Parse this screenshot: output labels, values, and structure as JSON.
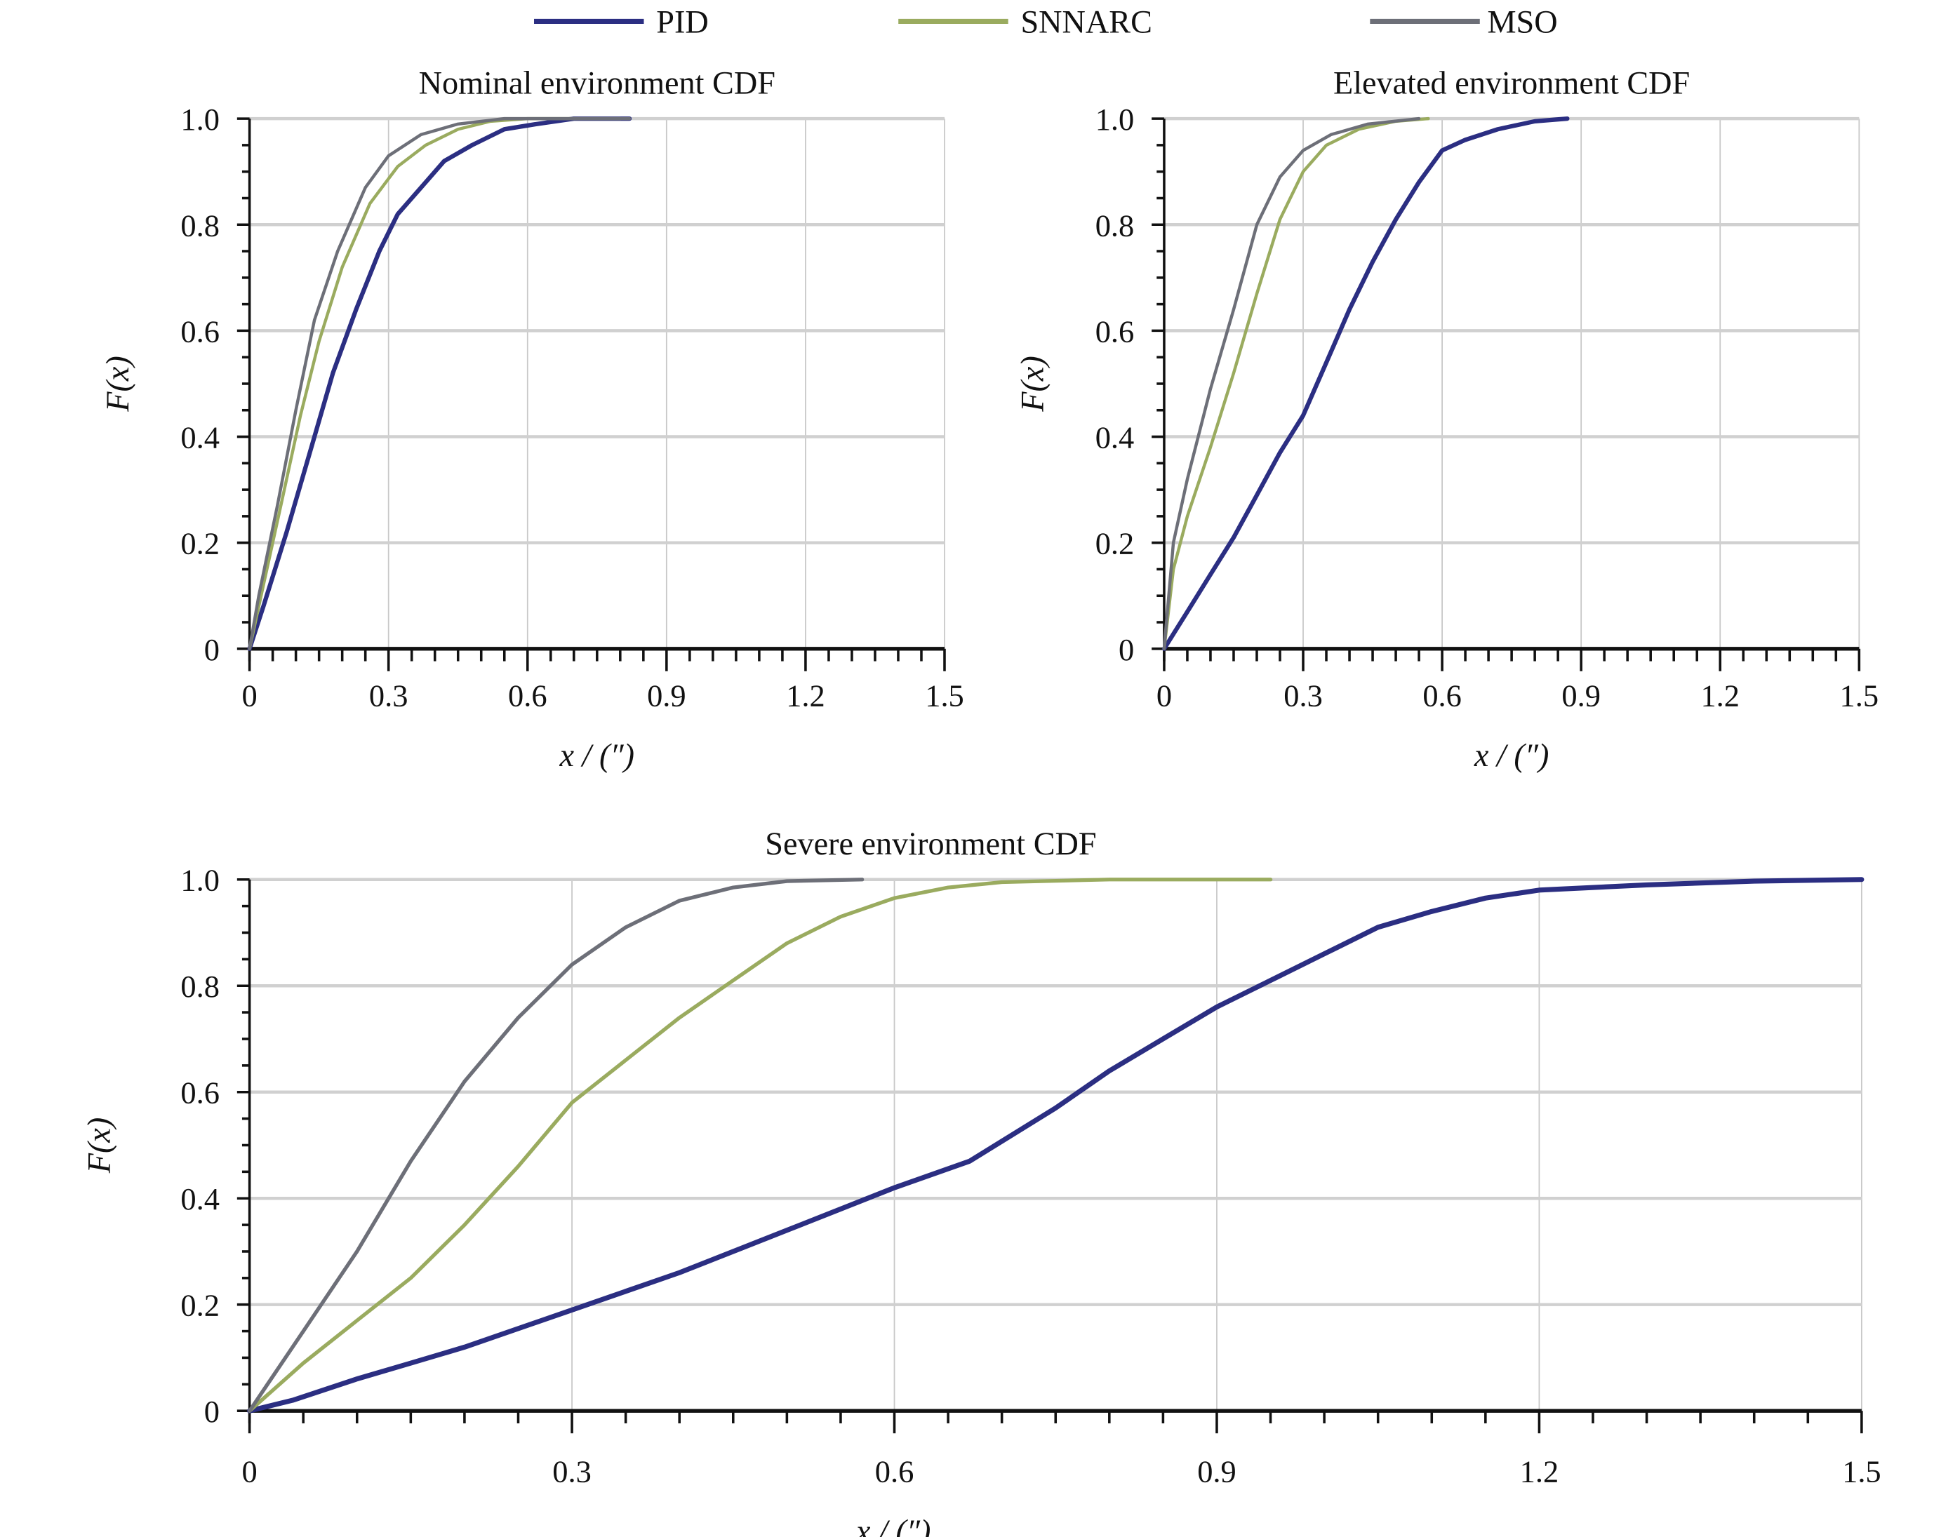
{
  "legend": [
    {
      "name": "PID",
      "color": "#2b2e82"
    },
    {
      "name": "SNNARC",
      "color": "#9aab5f"
    },
    {
      "name": "MSO",
      "color": "#6d6f78"
    }
  ],
  "chart_data": [
    {
      "type": "line",
      "title": "Nominal environment CDF",
      "xlabel": "x / (″)",
      "ylabel": "F(x)",
      "xlim": [
        0,
        1.5
      ],
      "ylim": [
        0,
        1.0
      ],
      "xticks": [
        "0",
        "0.3",
        "0.6",
        "0.9",
        "1.2",
        "1.5"
      ],
      "yticks": [
        "0",
        "0.2",
        "0.4",
        "0.6",
        "0.8",
        "1.0"
      ],
      "grid": true,
      "series": [
        {
          "name": "PID",
          "points": [
            [
              0,
              0
            ],
            [
              0.03,
              0.08
            ],
            [
              0.08,
              0.22
            ],
            [
              0.13,
              0.37
            ],
            [
              0.18,
              0.52
            ],
            [
              0.23,
              0.64
            ],
            [
              0.28,
              0.75
            ],
            [
              0.32,
              0.82
            ],
            [
              0.37,
              0.87
            ],
            [
              0.42,
              0.92
            ],
            [
              0.48,
              0.95
            ],
            [
              0.55,
              0.98
            ],
            [
              0.62,
              0.99
            ],
            [
              0.7,
              1.0
            ],
            [
              0.82,
              1.0
            ]
          ]
        },
        {
          "name": "SNNARC",
          "points": [
            [
              0,
              0
            ],
            [
              0.03,
              0.12
            ],
            [
              0.07,
              0.28
            ],
            [
              0.11,
              0.44
            ],
            [
              0.15,
              0.58
            ],
            [
              0.2,
              0.72
            ],
            [
              0.26,
              0.84
            ],
            [
              0.32,
              0.91
            ],
            [
              0.38,
              0.95
            ],
            [
              0.45,
              0.98
            ],
            [
              0.52,
              0.995
            ],
            [
              0.6,
              1.0
            ],
            [
              0.8,
              1.0
            ]
          ]
        },
        {
          "name": "MSO",
          "points": [
            [
              0,
              0
            ],
            [
              0.02,
              0.1
            ],
            [
              0.06,
              0.27
            ],
            [
              0.1,
              0.45
            ],
            [
              0.14,
              0.62
            ],
            [
              0.19,
              0.75
            ],
            [
              0.25,
              0.87
            ],
            [
              0.3,
              0.93
            ],
            [
              0.37,
              0.97
            ],
            [
              0.45,
              0.99
            ],
            [
              0.55,
              1.0
            ],
            [
              0.82,
              1.0
            ]
          ]
        }
      ]
    },
    {
      "type": "line",
      "title": "Elevated environment CDF",
      "xlabel": "x / (″)",
      "ylabel": "F(x)",
      "xlim": [
        0,
        1.5
      ],
      "ylim": [
        0,
        1.0
      ],
      "xticks": [
        "0",
        "0.3",
        "0.6",
        "0.9",
        "1.2",
        "1.5"
      ],
      "yticks": [
        "0",
        "0.2",
        "0.4",
        "0.6",
        "0.8",
        "1.0"
      ],
      "grid": true,
      "series": [
        {
          "name": "PID",
          "points": [
            [
              0,
              0
            ],
            [
              0.05,
              0.07
            ],
            [
              0.1,
              0.14
            ],
            [
              0.15,
              0.21
            ],
            [
              0.2,
              0.29
            ],
            [
              0.25,
              0.37
            ],
            [
              0.3,
              0.44
            ],
            [
              0.35,
              0.54
            ],
            [
              0.4,
              0.64
            ],
            [
              0.45,
              0.73
            ],
            [
              0.5,
              0.81
            ],
            [
              0.55,
              0.88
            ],
            [
              0.6,
              0.94
            ],
            [
              0.65,
              0.96
            ],
            [
              0.72,
              0.98
            ],
            [
              0.8,
              0.995
            ],
            [
              0.87,
              1.0
            ]
          ]
        },
        {
          "name": "SNNARC",
          "points": [
            [
              0,
              0
            ],
            [
              0.02,
              0.15
            ],
            [
              0.05,
              0.25
            ],
            [
              0.1,
              0.38
            ],
            [
              0.15,
              0.52
            ],
            [
              0.2,
              0.67
            ],
            [
              0.25,
              0.81
            ],
            [
              0.3,
              0.9
            ],
            [
              0.35,
              0.95
            ],
            [
              0.42,
              0.98
            ],
            [
              0.5,
              0.995
            ],
            [
              0.57,
              1.0
            ]
          ]
        },
        {
          "name": "MSO",
          "points": [
            [
              0,
              0
            ],
            [
              0.02,
              0.2
            ],
            [
              0.05,
              0.32
            ],
            [
              0.1,
              0.49
            ],
            [
              0.15,
              0.64
            ],
            [
              0.2,
              0.8
            ],
            [
              0.25,
              0.89
            ],
            [
              0.3,
              0.94
            ],
            [
              0.36,
              0.97
            ],
            [
              0.44,
              0.99
            ],
            [
              0.55,
              1.0
            ]
          ]
        }
      ]
    },
    {
      "type": "line",
      "title": "Severe environment CDF",
      "xlabel": "x / (″)",
      "ylabel": "F(x)",
      "xlim": [
        0,
        1.5
      ],
      "ylim": [
        0,
        1.0
      ],
      "xticks": [
        "0",
        "0.3",
        "0.6",
        "0.9",
        "1.2",
        "1.5"
      ],
      "yticks": [
        "0",
        "0.2",
        "0.4",
        "0.6",
        "0.8",
        "1.0"
      ],
      "grid": true,
      "series": [
        {
          "name": "PID",
          "points": [
            [
              0,
              0
            ],
            [
              0.04,
              0.02
            ],
            [
              0.1,
              0.06
            ],
            [
              0.15,
              0.09
            ],
            [
              0.2,
              0.12
            ],
            [
              0.3,
              0.19
            ],
            [
              0.4,
              0.26
            ],
            [
              0.5,
              0.34
            ],
            [
              0.6,
              0.42
            ],
            [
              0.67,
              0.47
            ],
            [
              0.75,
              0.57
            ],
            [
              0.8,
              0.64
            ],
            [
              0.85,
              0.7
            ],
            [
              0.9,
              0.76
            ],
            [
              0.95,
              0.81
            ],
            [
              1.0,
              0.86
            ],
            [
              1.05,
              0.91
            ],
            [
              1.1,
              0.94
            ],
            [
              1.15,
              0.965
            ],
            [
              1.2,
              0.98
            ],
            [
              1.3,
              0.99
            ],
            [
              1.4,
              0.997
            ],
            [
              1.5,
              1.0
            ]
          ]
        },
        {
          "name": "SNNARC",
          "points": [
            [
              0,
              0
            ],
            [
              0.05,
              0.09
            ],
            [
              0.1,
              0.17
            ],
            [
              0.15,
              0.25
            ],
            [
              0.2,
              0.35
            ],
            [
              0.25,
              0.46
            ],
            [
              0.3,
              0.58
            ],
            [
              0.35,
              0.66
            ],
            [
              0.4,
              0.74
            ],
            [
              0.45,
              0.81
            ],
            [
              0.5,
              0.88
            ],
            [
              0.55,
              0.93
            ],
            [
              0.6,
              0.965
            ],
            [
              0.65,
              0.985
            ],
            [
              0.7,
              0.995
            ],
            [
              0.8,
              1.0
            ],
            [
              0.95,
              1.0
            ]
          ]
        },
        {
          "name": "MSO",
          "points": [
            [
              0,
              0
            ],
            [
              0.05,
              0.15
            ],
            [
              0.1,
              0.3
            ],
            [
              0.15,
              0.47
            ],
            [
              0.2,
              0.62
            ],
            [
              0.25,
              0.74
            ],
            [
              0.3,
              0.84
            ],
            [
              0.35,
              0.91
            ],
            [
              0.4,
              0.96
            ],
            [
              0.45,
              0.985
            ],
            [
              0.5,
              0.997
            ],
            [
              0.57,
              1.0
            ]
          ]
        }
      ]
    }
  ]
}
